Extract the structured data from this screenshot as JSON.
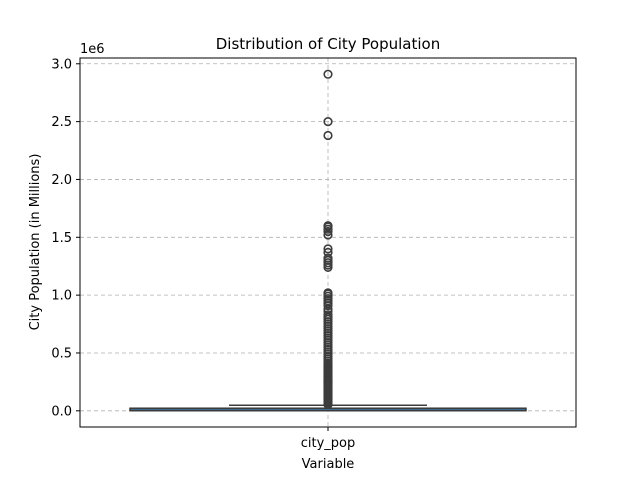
{
  "chart_data": {
    "type": "box",
    "title": "Distribution of City Population",
    "xlabel": "Variable",
    "ylabel": "City Population (in Millions)",
    "y_offset_label": "1e6",
    "categories": [
      "city_pop"
    ],
    "ylim": [
      -0.14,
      3.05
    ],
    "yticks": [
      0.0,
      0.5,
      1.0,
      1.5,
      2.0,
      2.5,
      3.0
    ],
    "ytick_labels": [
      "0.0",
      "0.5",
      "1.0",
      "1.5",
      "2.0",
      "2.5",
      "3.0"
    ],
    "grid": true,
    "box": {
      "q1": 0.0007,
      "median": 0.0025,
      "q3": 0.0205,
      "whisker_low": 2e-05,
      "whisker_high": 0.0485
    },
    "outliers": [
      0.055,
      0.065,
      0.075,
      0.085,
      0.095,
      0.105,
      0.115,
      0.125,
      0.135,
      0.145,
      0.155,
      0.165,
      0.175,
      0.185,
      0.195,
      0.205,
      0.215,
      0.225,
      0.235,
      0.245,
      0.255,
      0.265,
      0.275,
      0.285,
      0.295,
      0.305,
      0.315,
      0.325,
      0.335,
      0.345,
      0.355,
      0.365,
      0.375,
      0.385,
      0.395,
      0.41,
      0.43,
      0.45,
      0.47,
      0.49,
      0.51,
      0.53,
      0.55,
      0.57,
      0.59,
      0.61,
      0.63,
      0.65,
      0.67,
      0.69,
      0.71,
      0.73,
      0.75,
      0.77,
      0.79,
      0.81,
      0.83,
      0.86,
      0.88,
      0.91,
      0.93,
      0.95,
      0.97,
      0.99,
      1.01,
      1.02,
      1.24,
      1.26,
      1.28,
      1.3,
      1.32,
      1.37,
      1.4,
      1.52,
      1.55,
      1.57,
      1.59,
      1.6,
      2.38,
      2.5,
      2.91
    ],
    "colors": {
      "box_fill": "#3a78ad",
      "line": "#3c3c3c",
      "grid": "#b0b0b0"
    }
  }
}
